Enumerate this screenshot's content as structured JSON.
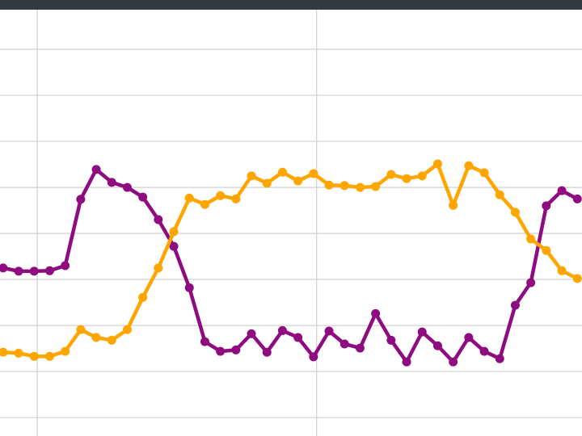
{
  "chart_data": {
    "type": "line",
    "x": [
      0,
      1,
      2,
      3,
      4,
      5,
      6,
      7,
      8,
      9,
      10,
      11,
      12,
      13,
      14,
      15,
      16,
      17,
      18,
      19,
      20,
      21,
      22,
      23,
      24,
      25,
      26,
      27,
      28,
      29,
      30,
      31,
      32,
      33,
      34,
      35,
      36,
      37
    ],
    "xlim": [
      -0.2,
      37.3
    ],
    "xticks": [
      2.2,
      20.2
    ],
    "ylim": [
      -0.4,
      8.86
    ],
    "yticks": [
      0,
      1,
      2,
      3,
      4,
      5,
      6,
      7,
      8
    ],
    "grid": true,
    "series": [
      {
        "color": "#8e0c80",
        "values": [
          3.25,
          3.18,
          3.18,
          3.19,
          3.3,
          4.74,
          5.39,
          5.11,
          5.0,
          4.79,
          4.3,
          3.72,
          2.82,
          1.65,
          1.44,
          1.47,
          1.82,
          1.42,
          1.89,
          1.74,
          1.32,
          1.88,
          1.6,
          1.51,
          2.26,
          1.68,
          1.21,
          1.86,
          1.56,
          1.21,
          1.74,
          1.44,
          1.28,
          2.44,
          2.93,
          4.6,
          4.93,
          4.75
        ]
      },
      {
        "color": "#ffa500",
        "values": [
          1.42,
          1.4,
          1.33,
          1.33,
          1.44,
          1.91,
          1.74,
          1.68,
          1.91,
          2.61,
          3.25,
          4.04,
          4.77,
          4.63,
          4.82,
          4.75,
          5.25,
          5.09,
          5.33,
          5.14,
          5.3,
          5.05,
          5.04,
          5.0,
          5.02,
          5.28,
          5.19,
          5.25,
          5.51,
          4.61,
          5.47,
          5.32,
          4.84,
          4.46,
          3.88,
          3.63,
          3.19,
          3.02
        ]
      }
    ]
  }
}
